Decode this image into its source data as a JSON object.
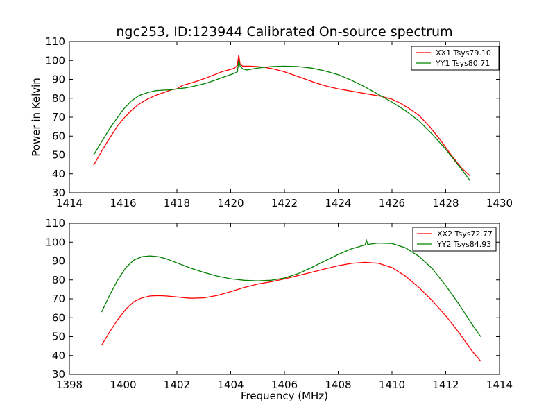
{
  "figure": {
    "title": "ngc253, ID:123944 Calibrated On-source spectrum",
    "colors": {
      "red": "#ff0000",
      "green": "#008000"
    }
  },
  "chart_data": [
    {
      "type": "line",
      "title": "ngc253, ID:123944 Calibrated On-source spectrum",
      "xlabel": "",
      "ylabel": "Power in Kelvin",
      "xlim": [
        1414,
        1430
      ],
      "ylim": [
        30,
        110
      ],
      "xticks": [
        1414,
        1416,
        1418,
        1420,
        1422,
        1424,
        1426,
        1428,
        1430
      ],
      "yticks": [
        30,
        40,
        50,
        60,
        70,
        80,
        90,
        100,
        110
      ],
      "grid": false,
      "legend": "top-right",
      "series": [
        {
          "name": "XX1 Tsys79.10",
          "color": "#ff0000",
          "x": [
            1414.9,
            1415.2,
            1415.5,
            1415.8,
            1416.0,
            1416.3,
            1416.6,
            1416.9,
            1417.2,
            1417.5,
            1417.8,
            1418.0,
            1418.2,
            1418.5,
            1418.8,
            1419.1,
            1419.4,
            1419.7,
            1420.0,
            1420.15,
            1420.25,
            1420.3,
            1420.35,
            1420.45,
            1420.7,
            1421.0,
            1421.3,
            1421.6,
            1422.0,
            1422.4,
            1422.8,
            1423.2,
            1423.6,
            1424.0,
            1424.4,
            1424.8,
            1425.2,
            1425.6,
            1426.0,
            1426.3,
            1426.6,
            1427.0,
            1427.4,
            1427.8,
            1428.2,
            1428.6,
            1428.9
          ],
          "y": [
            44.5,
            52,
            59,
            65.5,
            69,
            73.5,
            77,
            79.5,
            81.5,
            83,
            84.5,
            85,
            86.8,
            88,
            89.3,
            90.8,
            92.5,
            94.2,
            95.3,
            96,
            97.5,
            103,
            98,
            97,
            97,
            96.8,
            96.3,
            95.5,
            94,
            92,
            90,
            88,
            86.3,
            85,
            84,
            83,
            82,
            81,
            79.5,
            77.5,
            75,
            71,
            65,
            58,
            50,
            43,
            39
          ]
        },
        {
          "name": "YY1 Tsys80.71",
          "color": "#008000",
          "x": [
            1414.9,
            1415.2,
            1415.5,
            1415.8,
            1416.0,
            1416.3,
            1416.6,
            1416.9,
            1417.2,
            1417.5,
            1417.8,
            1418.0,
            1418.3,
            1418.6,
            1418.9,
            1419.2,
            1419.5,
            1419.8,
            1420.1,
            1420.25,
            1420.3,
            1420.35,
            1420.45,
            1420.6,
            1421.0,
            1421.5,
            1422.0,
            1422.5,
            1423.0,
            1423.5,
            1424.0,
            1424.5,
            1425.0,
            1425.5,
            1426.0,
            1426.5,
            1427.0,
            1427.5,
            1428.0,
            1428.5,
            1428.9
          ],
          "y": [
            50,
            57,
            64,
            70,
            74,
            78.5,
            81.5,
            83,
            84,
            84.3,
            84.5,
            85,
            85.5,
            86.3,
            87.3,
            88.5,
            90,
            91.5,
            93,
            94,
            100,
            97,
            95.5,
            95,
            96,
            96.8,
            97,
            96.8,
            96,
            94.5,
            92.5,
            89.5,
            86,
            82,
            78,
            73.5,
            68,
            61,
            53,
            44,
            36.5
          ]
        }
      ]
    },
    {
      "type": "line",
      "title": "",
      "xlabel": "Frequency (MHz)",
      "ylabel": "",
      "xlim": [
        1398,
        1414
      ],
      "ylim": [
        30,
        110
      ],
      "xticks": [
        1398,
        1400,
        1402,
        1404,
        1406,
        1408,
        1410,
        1412,
        1414
      ],
      "yticks": [
        30,
        40,
        50,
        60,
        70,
        80,
        90,
        100,
        110
      ],
      "grid": false,
      "legend": "top-right",
      "series": [
        {
          "name": "XX2 Tsys72.77",
          "color": "#ff0000",
          "x": [
            1399.2,
            1399.5,
            1399.8,
            1400.1,
            1400.4,
            1400.7,
            1401.0,
            1401.3,
            1401.6,
            1402.0,
            1402.5,
            1403.0,
            1403.5,
            1404.0,
            1404.5,
            1405.0,
            1405.5,
            1406.0,
            1406.5,
            1407.0,
            1407.5,
            1408.0,
            1408.5,
            1409.0,
            1409.5,
            1410.0,
            1410.5,
            1411.0,
            1411.5,
            1412.0,
            1412.5,
            1413.0,
            1413.3
          ],
          "y": [
            45.5,
            52.5,
            59,
            64.5,
            68.5,
            70.5,
            71.5,
            71.7,
            71.5,
            71,
            70.3,
            70.5,
            71.8,
            73.8,
            76,
            77.8,
            79,
            80.5,
            82.3,
            84,
            85.8,
            87.5,
            88.8,
            89.3,
            88.8,
            86.5,
            82,
            76,
            69,
            61,
            52,
            42,
            37
          ]
        },
        {
          "name": "YY2 Tsys84.93",
          "color": "#008000",
          "x": [
            1399.2,
            1399.5,
            1399.8,
            1400.1,
            1400.4,
            1400.7,
            1401.0,
            1401.3,
            1401.6,
            1402.0,
            1402.5,
            1403.0,
            1403.5,
            1404.0,
            1404.5,
            1405.0,
            1405.5,
            1406.0,
            1406.5,
            1407.0,
            1407.5,
            1408.0,
            1408.5,
            1409.0,
            1409.05,
            1409.1,
            1409.5,
            1410.0,
            1410.5,
            1411.0,
            1411.5,
            1412.0,
            1412.5,
            1413.0,
            1413.3
          ],
          "y": [
            63,
            72,
            80,
            86.5,
            90.5,
            92.3,
            92.7,
            92.3,
            91.2,
            89,
            86.3,
            84,
            82,
            80.6,
            79.8,
            79.5,
            79.8,
            81,
            83.3,
            86.5,
            90,
            93.5,
            96.5,
            98.5,
            101,
            98.8,
            99.5,
            99.3,
            97,
            92.5,
            86,
            77,
            67,
            56,
            50
          ]
        }
      ]
    }
  ]
}
